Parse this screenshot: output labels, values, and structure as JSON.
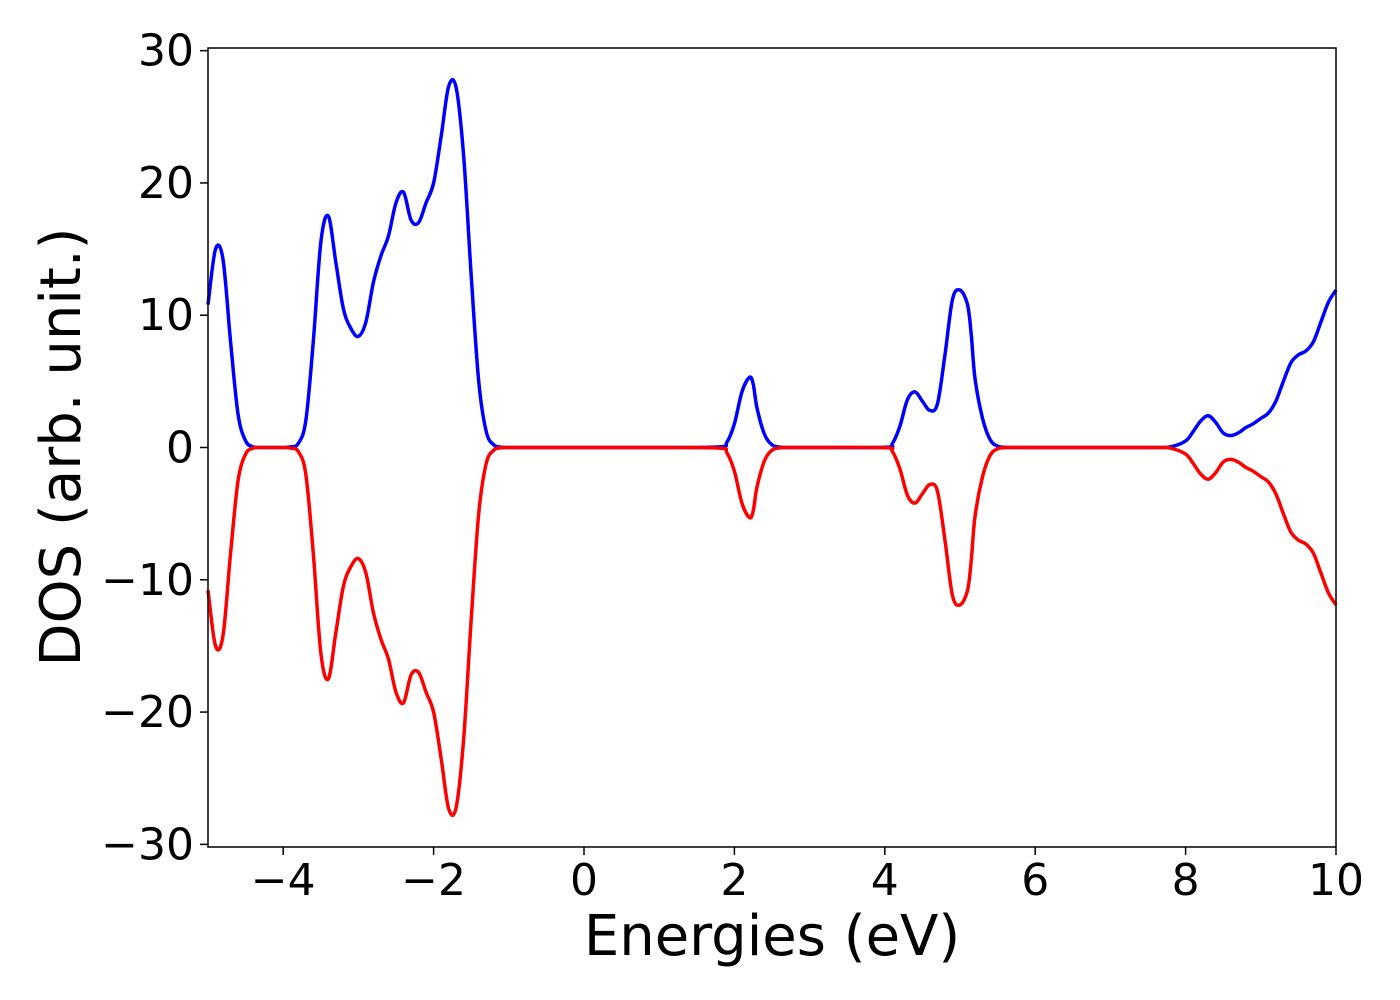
{
  "chart_data": {
    "type": "line",
    "title": "",
    "xlabel": "Energies (eV)",
    "ylabel": "DOS (arb. unit.)",
    "xlim": [
      -5,
      10
    ],
    "ylim": [
      -30.2,
      30.2
    ],
    "xticks": [
      -4,
      -2,
      0,
      2,
      4,
      6,
      8,
      10
    ],
    "xtick_labels": [
      "−4",
      "−2",
      "0",
      "2",
      "4",
      "6",
      "8",
      "10"
    ],
    "yticks": [
      -30,
      -20,
      -10,
      0,
      10,
      20,
      30
    ],
    "ytick_labels": [
      "−30",
      "−20",
      "−10",
      "0",
      "10",
      "20",
      "30"
    ],
    "grid": false,
    "legend": "none",
    "series": [
      {
        "color": "#0000ff",
        "x": [
          -5.0,
          -4.9,
          -4.8,
          -4.7,
          -4.6,
          -4.5,
          -4.4,
          -4.3,
          -4.2,
          -4.0,
          -3.9,
          -3.8,
          -3.7,
          -3.6,
          -3.5,
          -3.4,
          -3.3,
          -3.2,
          -3.1,
          -3.0,
          -2.9,
          -2.8,
          -2.7,
          -2.6,
          -2.5,
          -2.4,
          -2.3,
          -2.2,
          -2.1,
          -2.0,
          -1.9,
          -1.8,
          -1.7,
          -1.6,
          -1.5,
          -1.4,
          -1.3,
          -1.2,
          -1.1,
          -1.0,
          -0.9,
          -0.8,
          -0.7,
          -0.6,
          -0.5,
          0.0,
          1.0,
          1.8,
          1.9,
          2.0,
          2.1,
          2.2,
          2.25,
          2.3,
          2.4,
          2.5,
          2.6,
          2.7,
          3.0,
          4.0,
          4.1,
          4.2,
          4.3,
          4.4,
          4.5,
          4.6,
          4.7,
          4.8,
          4.9,
          5.0,
          5.1,
          5.15,
          5.2,
          5.3,
          5.4,
          5.5,
          5.6,
          5.7,
          5.8,
          6.0,
          7.0,
          7.6,
          7.8,
          8.0,
          8.1,
          8.2,
          8.3,
          8.4,
          8.5,
          8.6,
          8.7,
          8.8,
          8.9,
          9.0,
          9.1,
          9.2,
          9.3,
          9.4,
          9.5,
          9.6,
          9.7,
          9.8,
          9.9,
          10.0
        ],
        "y": [
          10.8,
          15.0,
          14.2,
          8.0,
          2.5,
          0.5,
          0.05,
          0.0,
          0.0,
          0.0,
          0.05,
          0.3,
          2.0,
          8.0,
          15.5,
          17.5,
          14.0,
          10.5,
          9.0,
          8.4,
          9.5,
          12.5,
          14.5,
          16.0,
          18.5,
          19.3,
          17.2,
          17.0,
          18.5,
          20.0,
          23.5,
          27.3,
          27.2,
          22.0,
          13.0,
          5.0,
          1.2,
          0.2,
          0.02,
          0.0,
          0.0,
          0.0,
          0.0,
          0.0,
          0.0,
          0.0,
          0.0,
          0.05,
          0.4,
          1.8,
          4.2,
          5.3,
          4.8,
          3.0,
          1.0,
          0.2,
          0.03,
          0.0,
          0.0,
          0.02,
          0.3,
          1.6,
          3.6,
          4.2,
          3.5,
          2.8,
          3.3,
          7.0,
          11.2,
          11.9,
          10.8,
          8.5,
          5.2,
          2.2,
          0.6,
          0.1,
          0.01,
          0.0,
          0.0,
          0.0,
          0.0,
          0.0,
          0.05,
          0.5,
          1.2,
          2.0,
          2.4,
          1.9,
          1.1,
          0.9,
          1.1,
          1.5,
          1.8,
          2.2,
          2.6,
          3.5,
          5.0,
          6.4,
          7.0,
          7.3,
          8.0,
          9.5,
          11.0,
          11.9
        ]
      },
      {
        "color": "#ff0000",
        "x": [
          -5.0,
          -4.9,
          -4.8,
          -4.7,
          -4.6,
          -4.5,
          -4.4,
          -4.3,
          -4.2,
          -4.0,
          -3.9,
          -3.8,
          -3.7,
          -3.6,
          -3.5,
          -3.4,
          -3.3,
          -3.2,
          -3.1,
          -3.0,
          -2.9,
          -2.8,
          -2.7,
          -2.6,
          -2.5,
          -2.4,
          -2.3,
          -2.2,
          -2.1,
          -2.0,
          -1.9,
          -1.8,
          -1.7,
          -1.6,
          -1.5,
          -1.4,
          -1.3,
          -1.2,
          -1.1,
          -1.0,
          -0.9,
          -0.8,
          -0.7,
          -0.6,
          -0.5,
          0.0,
          1.0,
          1.8,
          1.9,
          2.0,
          2.1,
          2.2,
          2.25,
          2.3,
          2.4,
          2.5,
          2.6,
          2.7,
          3.0,
          4.0,
          4.1,
          4.2,
          4.3,
          4.4,
          4.5,
          4.6,
          4.7,
          4.8,
          4.9,
          5.0,
          5.1,
          5.15,
          5.2,
          5.3,
          5.4,
          5.5,
          5.6,
          5.7,
          5.8,
          6.0,
          7.0,
          7.6,
          7.8,
          8.0,
          8.1,
          8.2,
          8.3,
          8.4,
          8.5,
          8.6,
          8.7,
          8.8,
          8.9,
          9.0,
          9.1,
          9.2,
          9.3,
          9.4,
          9.5,
          9.6,
          9.7,
          9.8,
          9.9,
          10.0
        ],
        "y": [
          -10.8,
          -15.0,
          -14.2,
          -8.0,
          -2.5,
          -0.5,
          -0.05,
          0.0,
          0.0,
          0.0,
          -0.05,
          -0.3,
          -2.0,
          -8.0,
          -15.5,
          -17.5,
          -14.0,
          -10.5,
          -9.0,
          -8.4,
          -9.5,
          -12.5,
          -14.5,
          -16.0,
          -18.5,
          -19.3,
          -17.2,
          -17.0,
          -18.5,
          -20.0,
          -23.5,
          -27.3,
          -27.2,
          -22.0,
          -13.0,
          -5.0,
          -1.2,
          -0.2,
          -0.02,
          0.0,
          0.0,
          0.0,
          0.0,
          0.0,
          0.0,
          0.0,
          0.0,
          -0.05,
          -0.4,
          -1.8,
          -4.2,
          -5.3,
          -4.8,
          -3.0,
          -1.0,
          -0.2,
          -0.03,
          0.0,
          0.0,
          -0.02,
          -0.3,
          -1.6,
          -3.6,
          -4.2,
          -3.5,
          -2.8,
          -3.3,
          -7.0,
          -11.2,
          -11.9,
          -10.8,
          -8.5,
          -5.2,
          -2.2,
          -0.6,
          -0.1,
          -0.01,
          0.0,
          0.0,
          0.0,
          0.0,
          0.0,
          -0.05,
          -0.5,
          -1.2,
          -2.0,
          -2.4,
          -1.9,
          -1.1,
          -0.9,
          -1.1,
          -1.5,
          -1.8,
          -2.2,
          -2.6,
          -3.5,
          -5.0,
          -6.4,
          -7.0,
          -7.3,
          -8.0,
          -9.5,
          -11.0,
          -11.9
        ]
      }
    ]
  }
}
